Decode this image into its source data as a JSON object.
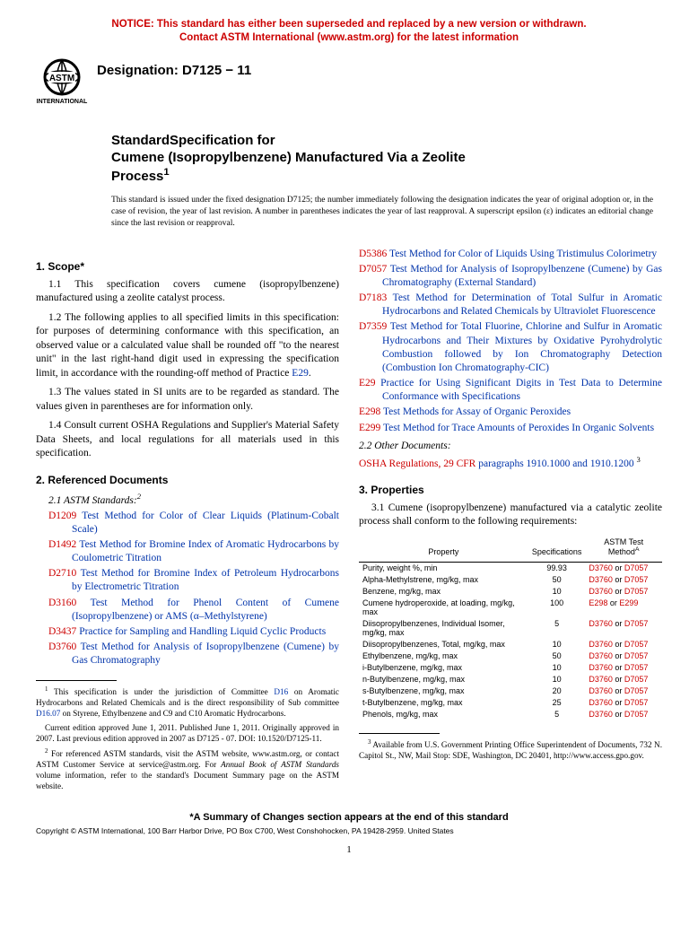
{
  "notice": {
    "line1": "NOTICE: This standard has either been superseded and replaced by a new version or withdrawn.",
    "line2": "Contact ASTM International (www.astm.org) for the latest information"
  },
  "designation": "Designation: D7125 − 11",
  "title": {
    "line1": "StandardSpecification for",
    "line2": "Cumene (Isopropylbenzene) Manufactured Via a Zeolite",
    "line3": "Process"
  },
  "issue_note": "This standard is issued under the fixed designation D7125; the number immediately following the designation indicates the year of original adoption or, in the case of revision, the year of last revision. A number in parentheses indicates the year of last reapproval. A superscript epsilon (ε) indicates an editorial change since the last revision or reapproval.",
  "scope": {
    "head": "1. Scope*",
    "p1_a": "1.1 This specification covers cumene (isopropylbenzene) manufactured using a zeolite catalyst process.",
    "p2_a": "1.2 The following applies to all specified limits in this specification: for purposes of determining conformance with this specification, an observed value or a calculated value shall be rounded off \"to the nearest unit\" in the last right-hand digit used in expressing the specification limit, in accordance with the rounding-off method of Practice ",
    "p2_link": "E29",
    "p2_b": ".",
    "p3": "1.3 The values stated in SI units are to be regarded as standard. The values given in parentheses are for information only.",
    "p4": "1.4 Consult current OSHA Regulations and Supplier's Material Safety Data Sheets, and local regulations for all materials used in this specification."
  },
  "refs": {
    "head": "2. Referenced Documents",
    "sub1": "2.1 ASTM Standards:",
    "col1": [
      {
        "code": "D1209",
        "text": "Test Method for Color of Clear Liquids (Platinum-Cobalt Scale)"
      },
      {
        "code": "D1492",
        "text": "Test Method for Bromine Index of Aromatic Hydrocarbons by Coulometric Titration"
      },
      {
        "code": "D2710",
        "text": "Test Method for Bromine Index of Petroleum Hydrocarbons by Electrometric Titration"
      },
      {
        "code": "D3160",
        "text": "Test Method for Phenol Content of Cumene (Isopropylbenzene) or AMS (α–Methylstyrene)"
      },
      {
        "code": "D3437",
        "text": "Practice for Sampling and Handling Liquid Cyclic Products"
      },
      {
        "code": "D3760",
        "text": "Test Method for Analysis of Isopropylbenzene (Cumene) by Gas Chromatography"
      }
    ],
    "col2": [
      {
        "code": "D5386",
        "text": "Test Method for Color of Liquids Using Tristimulus Colorimetry"
      },
      {
        "code": "D7057",
        "text": "Test Method for Analysis of Isopropylbenzene (Cumene) by Gas Chromatography (External Standard)"
      },
      {
        "code": "D7183",
        "text": "Test Method for Determination of Total Sulfur in Aromatic Hydrocarbons and Related Chemicals by Ultraviolet Fluorescence"
      },
      {
        "code": "D7359",
        "text": "Test Method for Total Fluorine, Chlorine and Sulfur in Aromatic Hydrocarbons and Their Mixtures by Oxidative Pyrohydrolytic Combustion followed by Ion Chromatography Detection (Combustion Ion Chromatography-CIC)"
      },
      {
        "code": "E29",
        "text": "Practice for Using Significant Digits in Test Data to Determine Conformance with Specifications"
      },
      {
        "code": "E298",
        "text": "Test Methods for Assay of Organic Peroxides"
      },
      {
        "code": "E299",
        "text": "Test Method for Trace Amounts of Peroxides In Organic Solvents"
      }
    ],
    "sub2": "2.2 Other Documents:",
    "osha_a": "OSHA Regulations, 29 CFR",
    "osha_b": " paragraphs 1910.1000 and 1910.1200 "
  },
  "props": {
    "head": "3. Properties",
    "intro": "3.1 Cumene (isopropylbenzene) manufactured via a catalytic zeolite process shall conform to the following requirements:",
    "th_prop": "Property",
    "th_spec": "Specifications",
    "th_method": "ASTM Test Method",
    "rows": [
      {
        "prop": "Purity, weight %, min",
        "spec": "99.93",
        "m1": "D3760",
        "m2": "D7057"
      },
      {
        "prop": "Alpha-Methylstrene, mg/kg, max",
        "spec": "50",
        "m1": "D3760",
        "m2": "D7057"
      },
      {
        "prop": "Benzene, mg/kg, max",
        "spec": "10",
        "m1": "D3760",
        "m2": "D7057"
      },
      {
        "prop": "Cumene hydroperoxide, at loading, mg/kg, max",
        "spec": "100",
        "m1": "E298",
        "m2": "E299"
      },
      {
        "prop": "Diisopropylbenzenes, Individual Isomer, mg/kg, max",
        "spec": "5",
        "m1": "D3760",
        "m2": "D7057"
      },
      {
        "prop": "Diisopropylbenzenes, Total, mg/kg, max",
        "spec": "10",
        "m1": "D3760",
        "m2": "D7057"
      },
      {
        "prop": "Ethylbenzene, mg/kg, max",
        "spec": "50",
        "m1": "D3760",
        "m2": "D7057"
      },
      {
        "prop": "i-Butylbenzene, mg/kg, max",
        "spec": "10",
        "m1": "D3760",
        "m2": "D7057"
      },
      {
        "prop": "n-Butylbenzene, mg/kg, max",
        "spec": "10",
        "m1": "D3760",
        "m2": "D7057"
      },
      {
        "prop": "s-Butylbenzene, mg/kg, max",
        "spec": "20",
        "m1": "D3760",
        "m2": "D7057"
      },
      {
        "prop": "t-Butylbenzene, mg/kg, max",
        "spec": "25",
        "m1": "D3760",
        "m2": "D7057"
      },
      {
        "prop": "Phenols, mg/kg, max",
        "spec": "5",
        "m1": "D3760",
        "m2": "D7057"
      }
    ]
  },
  "footnotes_left": {
    "f1_a": " This specification is under the jurisdiction of Committee ",
    "f1_link1": "D16",
    "f1_b": " on Aromatic Hydrocarbons and Related Chemicals and is the direct responsibility of Sub committee ",
    "f1_link2": "D16.07",
    "f1_c": " on Styrene, Ethylbenzene and C9 and C10 Aromatic Hydrocarbons.",
    "f1p2": "Current edition approved June 1, 2011. Published June 1, 2011. Originally approved in 2007. Last previous edition approved in 2007 as D7125 - 07. DOI: 10.1520/D7125-11.",
    "f2_a": " For referenced ASTM standards, visit the ASTM website, www.astm.org, or contact ASTM Customer Service at service@astm.org. For ",
    "f2_i": "Annual Book of ASTM Standards",
    "f2_b": " volume information, refer to the standard's Document Summary page on the ASTM website."
  },
  "footnotes_right": {
    "f3": " Available from U.S. Government Printing Office Superintendent of Documents, 732 N. Capitol St., NW, Mail Stop: SDE, Washington, DC 20401, http://www.access.gpo.gov."
  },
  "summary": "*A Summary of Changes section appears at the end of this standard",
  "copyright": "Copyright © ASTM International, 100 Barr Harbor Drive, PO Box C700, West Conshohocken, PA 19428-2959. United States",
  "page_num": "1",
  "or_text": " or "
}
